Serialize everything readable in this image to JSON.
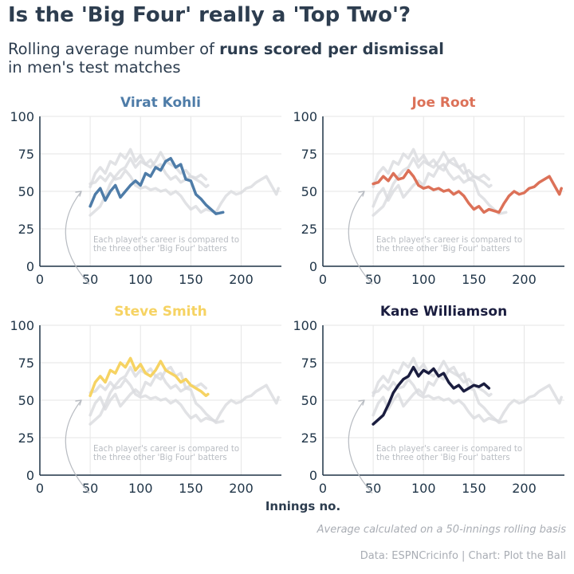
{
  "title": "Is the 'Big Four' really a 'Top Two'?",
  "subtitle": {
    "line1_prefix": "Rolling average number of ",
    "line1_bold": "runs scored per dismissal",
    "line2": "in men's test matches"
  },
  "x_axis_label": "Innings no.",
  "note": "Average calculated on a 50-innings rolling basis",
  "source": "Data: ESPNCricinfo | Chart: Plot the Ball",
  "annotation": [
    "Each player's career is compared to",
    "the three other 'Big Four' batters"
  ],
  "colors": {
    "Virat Kohli": "#4e7ca8",
    "Joe Root": "#dc7158",
    "Steve Smith": "#f6d363",
    "Kane Williamson": "#1a1d3f",
    "ghost": "#d9dbde",
    "grid": "#e6e6e6",
    "axis": "#1f3447",
    "annotation": "#b8bcc2"
  },
  "chart_data": [
    {
      "type": "line",
      "title": "Virat Kohli",
      "xlim": [
        0,
        240
      ],
      "ylim": [
        0,
        100
      ],
      "xticks": [
        0,
        50,
        100,
        150,
        200
      ],
      "yticks": [
        0,
        25,
        50,
        75,
        100
      ],
      "grid": true,
      "series": [
        {
          "name": "Virat Kohli",
          "x": [
            50,
            55,
            60,
            65,
            70,
            75,
            80,
            85,
            90,
            95,
            100,
            105,
            110,
            115,
            120,
            125,
            130,
            135,
            140,
            145,
            150,
            155,
            160,
            165,
            170,
            175,
            182
          ],
          "y": [
            40,
            48,
            52,
            44,
            50,
            54,
            46,
            50,
            54,
            57,
            54,
            62,
            60,
            66,
            64,
            70,
            72,
            66,
            68,
            58,
            57,
            48,
            45,
            41,
            38,
            35,
            36
          ]
        }
      ]
    },
    {
      "type": "line",
      "title": "Joe Root",
      "xlim": [
        0,
        240
      ],
      "ylim": [
        0,
        100
      ],
      "xticks": [
        0,
        50,
        100,
        150,
        200
      ],
      "yticks": [
        0,
        25,
        50,
        75,
        100
      ],
      "grid": true,
      "series": [
        {
          "name": "Joe Root",
          "x": [
            50,
            55,
            60,
            65,
            70,
            75,
            80,
            85,
            90,
            95,
            100,
            105,
            110,
            115,
            120,
            125,
            130,
            135,
            140,
            145,
            150,
            155,
            160,
            165,
            170,
            175,
            180,
            185,
            190,
            195,
            200,
            205,
            210,
            215,
            220,
            225,
            230,
            235,
            237
          ],
          "y": [
            55,
            56,
            60,
            57,
            62,
            58,
            59,
            64,
            60,
            54,
            52,
            53,
            51,
            52,
            50,
            51,
            48,
            50,
            47,
            42,
            38,
            40,
            36,
            38,
            37,
            36,
            42,
            47,
            50,
            48,
            49,
            52,
            53,
            56,
            58,
            60,
            54,
            48,
            52
          ]
        }
      ]
    },
    {
      "type": "line",
      "title": "Steve Smith",
      "xlim": [
        0,
        240
      ],
      "ylim": [
        0,
        100
      ],
      "xticks": [
        0,
        50,
        100,
        150,
        200
      ],
      "yticks": [
        0,
        25,
        50,
        75,
        100
      ],
      "grid": true,
      "series": [
        {
          "name": "Steve Smith",
          "x": [
            50,
            55,
            60,
            65,
            70,
            75,
            80,
            85,
            90,
            95,
            100,
            105,
            110,
            115,
            120,
            125,
            130,
            135,
            140,
            145,
            150,
            155,
            160,
            165,
            167
          ],
          "y": [
            53,
            62,
            66,
            62,
            70,
            68,
            75,
            72,
            78,
            70,
            74,
            68,
            66,
            70,
            76,
            70,
            68,
            66,
            62,
            64,
            60,
            58,
            56,
            53,
            54
          ]
        }
      ]
    },
    {
      "type": "line",
      "title": "Kane Williamson",
      "xlim": [
        0,
        240
      ],
      "ylim": [
        0,
        100
      ],
      "xticks": [
        0,
        50,
        100,
        150,
        200
      ],
      "yticks": [
        0,
        25,
        50,
        75,
        100
      ],
      "grid": true,
      "series": [
        {
          "name": "Kane Williamson",
          "x": [
            50,
            55,
            60,
            65,
            70,
            75,
            80,
            85,
            90,
            95,
            100,
            105,
            110,
            115,
            120,
            125,
            130,
            135,
            140,
            145,
            150,
            155,
            160,
            165
          ],
          "y": [
            34,
            37,
            40,
            47,
            55,
            60,
            64,
            66,
            72,
            66,
            70,
            68,
            71,
            66,
            68,
            62,
            58,
            60,
            56,
            58,
            60,
            59,
            61,
            58
          ]
        }
      ]
    }
  ]
}
